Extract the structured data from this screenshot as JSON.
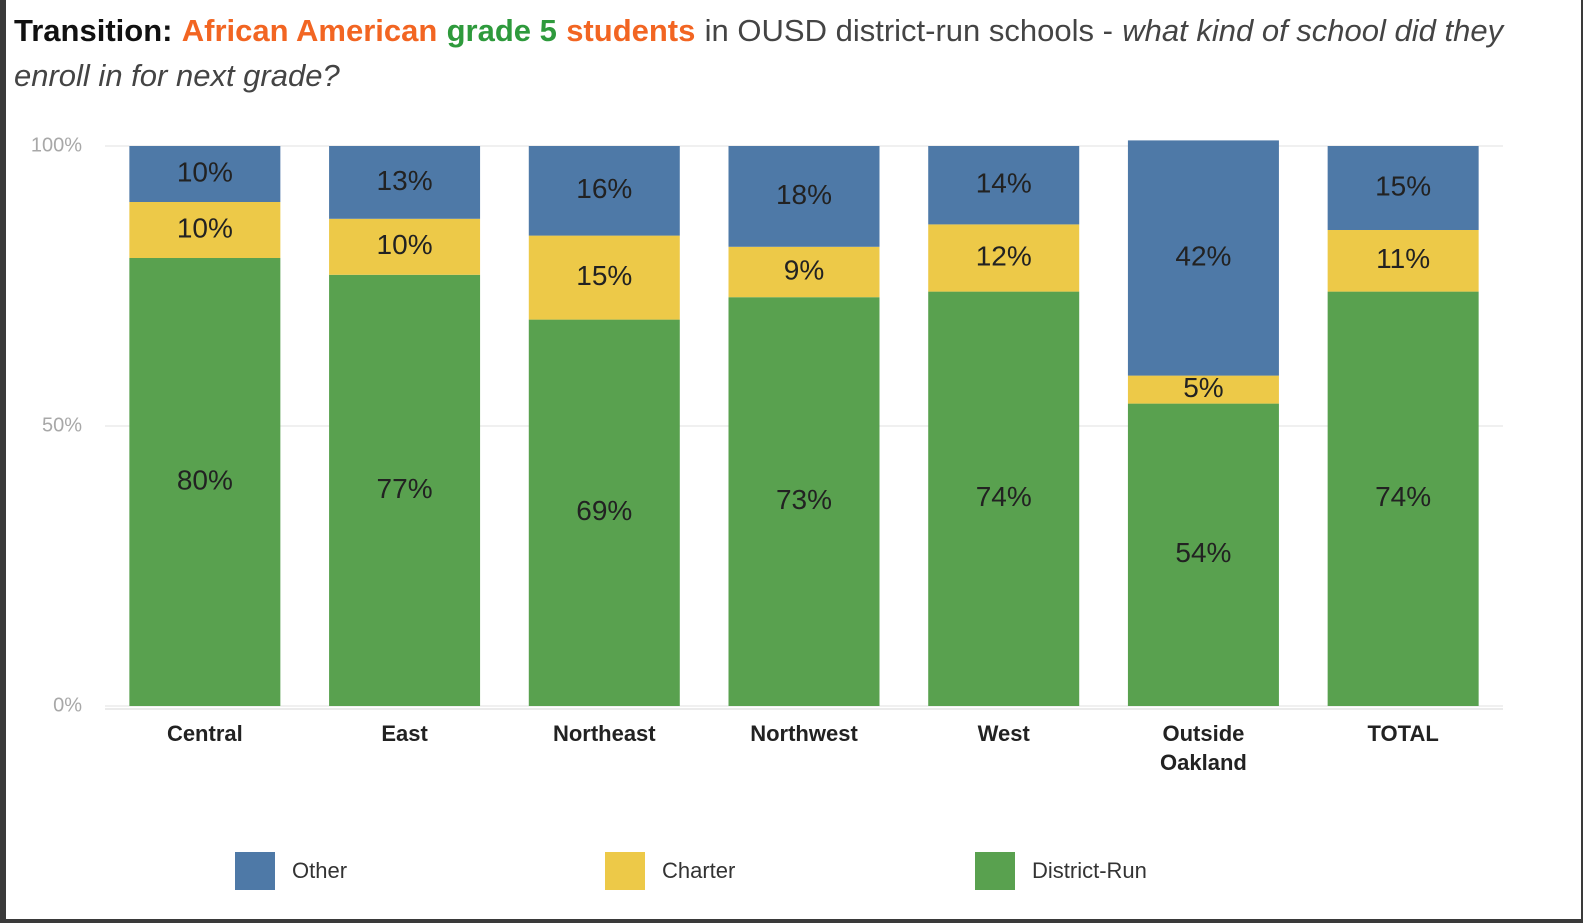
{
  "chart_data": {
    "type": "stacked_bar",
    "title": [
      {
        "text": "Transition:",
        "color": "#111111",
        "bold": true,
        "italic": false
      },
      {
        "text": "African American",
        "color": "#f26522",
        "bold": true,
        "italic": false
      },
      {
        "text": "grade 5",
        "color": "#2e9a3c",
        "bold": true,
        "italic": false
      },
      {
        "text": "students",
        "color": "#f26522",
        "bold": true,
        "italic": false
      },
      {
        "text": "in OUSD district-run schools -",
        "color": "#444444",
        "bold": false,
        "italic": false
      },
      {
        "text": "what kind of school did they enroll in for next grade?",
        "color": "#444444",
        "bold": false,
        "italic": true
      }
    ],
    "categories": [
      "Central",
      "East",
      "Northeast",
      "Northwest",
      "West",
      "Outside Oakland",
      "TOTAL"
    ],
    "series": [
      {
        "name": "District-Run",
        "color": "#59a14f",
        "values": [
          80,
          77,
          69,
          73,
          74,
          54,
          74
        ],
        "value_labels": [
          "80%",
          "77%",
          "69%",
          "73%",
          "74%",
          "54%",
          "74%"
        ]
      },
      {
        "name": "Charter",
        "color": "#edc948",
        "values": [
          10,
          10,
          15,
          9,
          12,
          5,
          11
        ],
        "value_labels": [
          "10%",
          "10%",
          "15%",
          "9%",
          "12%",
          "5%",
          "11%"
        ]
      },
      {
        "name": "Other",
        "color": "#4e79a7",
        "values": [
          10,
          13,
          16,
          18,
          14,
          42,
          15
        ],
        "value_labels": [
          "10%",
          "13%",
          "16%",
          "18%",
          "14%",
          "42%",
          "15%"
        ]
      }
    ],
    "legend_order": [
      2,
      1,
      0
    ],
    "ylim": [
      0,
      100
    ],
    "yticks": [
      {
        "value": 0,
        "label": "0%"
      },
      {
        "value": 50,
        "label": "50%"
      },
      {
        "value": 100,
        "label": "100%"
      }
    ],
    "grid": true,
    "legend": "bottom"
  }
}
